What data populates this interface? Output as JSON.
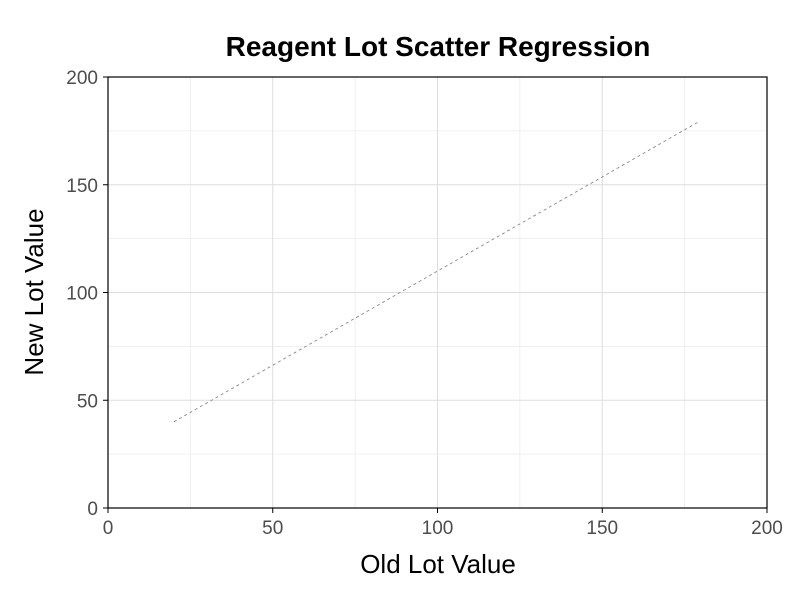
{
  "chart_data": {
    "type": "scatter",
    "title": "Reagent Lot Scatter Regression",
    "xlabel": "Old Lot Value",
    "ylabel": "New Lot Value",
    "xlim": [
      0,
      200
    ],
    "ylim": [
      0,
      200
    ],
    "x_ticks": [
      "0",
      "50",
      "100",
      "150",
      "200"
    ],
    "y_ticks": [
      "0",
      "50",
      "100",
      "150",
      "200"
    ],
    "x_tick_values": [
      0,
      50,
      100,
      150,
      200
    ],
    "y_tick_values": [
      0,
      50,
      100,
      150,
      200
    ],
    "grid": true,
    "series": [],
    "reference_line": {
      "style": "dashed",
      "x": [
        20,
        179
      ],
      "y": [
        40,
        179
      ]
    },
    "colors": {
      "grid_major": "#dedede",
      "grid_minor": "#ececec",
      "reference_line": "#8a8a8a",
      "axis": "#000000",
      "tick_text": "#4d4d4d"
    }
  }
}
